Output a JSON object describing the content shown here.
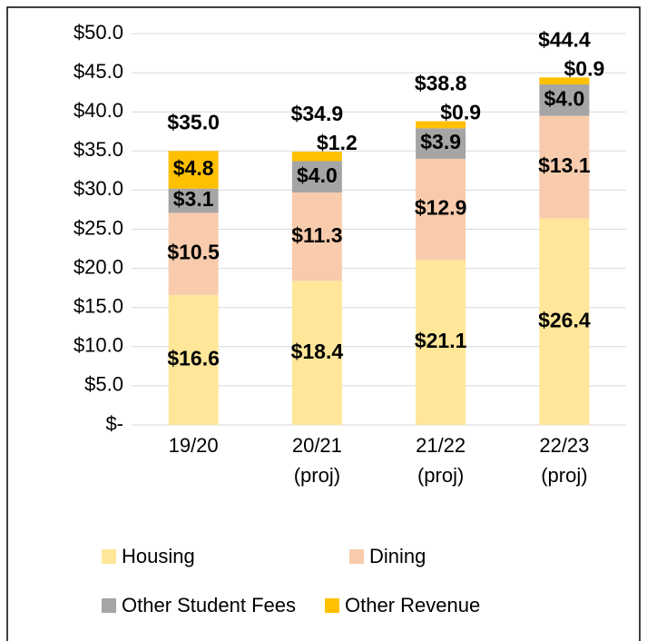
{
  "chart_data": {
    "type": "stacked_bar",
    "categories": [
      "19/20",
      "20/21\n(proj)",
      "21/22\n(proj)",
      "22/23\n(proj)"
    ],
    "series": [
      {
        "name": "Housing",
        "color": "#ffe699",
        "values": [
          16.6,
          18.4,
          21.1,
          26.4
        ],
        "value_labels": [
          "$16.6",
          "$18.4",
          "$21.1",
          "$26.4"
        ]
      },
      {
        "name": "Dining",
        "color": "#f8cbad",
        "values": [
          10.5,
          11.3,
          12.9,
          13.1
        ],
        "value_labels": [
          "$10.5",
          "$11.3",
          "$12.9",
          "$13.1"
        ]
      },
      {
        "name": "Other Student Fees",
        "color": "#a5a5a5",
        "values": [
          3.1,
          4.0,
          3.9,
          4.0
        ],
        "value_labels": [
          "$3.1",
          "$4.0",
          "$3.9",
          "$4.0"
        ]
      },
      {
        "name": "Other Revenue",
        "color": "#ffc000",
        "values": [
          4.8,
          1.2,
          0.9,
          0.9
        ],
        "value_labels": [
          "$4.8",
          "$1.2",
          "$0.9",
          "$0.9"
        ]
      }
    ],
    "totals": [
      35.0,
      34.9,
      38.8,
      44.4
    ],
    "total_labels": [
      "$35.0",
      "$34.9",
      "$38.8",
      "$44.4"
    ],
    "ylim": [
      0,
      50
    ],
    "yticks": [
      {
        "value": 0,
        "label": "$-"
      },
      {
        "value": 5,
        "label": "$5.0"
      },
      {
        "value": 10,
        "label": "$10.0"
      },
      {
        "value": 15,
        "label": "$15.0"
      },
      {
        "value": 20,
        "label": "$20.0"
      },
      {
        "value": 25,
        "label": "$25.0"
      },
      {
        "value": 30,
        "label": "$30.0"
      },
      {
        "value": 35,
        "label": "$35.0"
      },
      {
        "value": 40,
        "label": "$40.0"
      },
      {
        "value": 45,
        "label": "$45.0"
      },
      {
        "value": 50,
        "label": "$50.0"
      }
    ],
    "grid": true,
    "legend": "bottom"
  }
}
